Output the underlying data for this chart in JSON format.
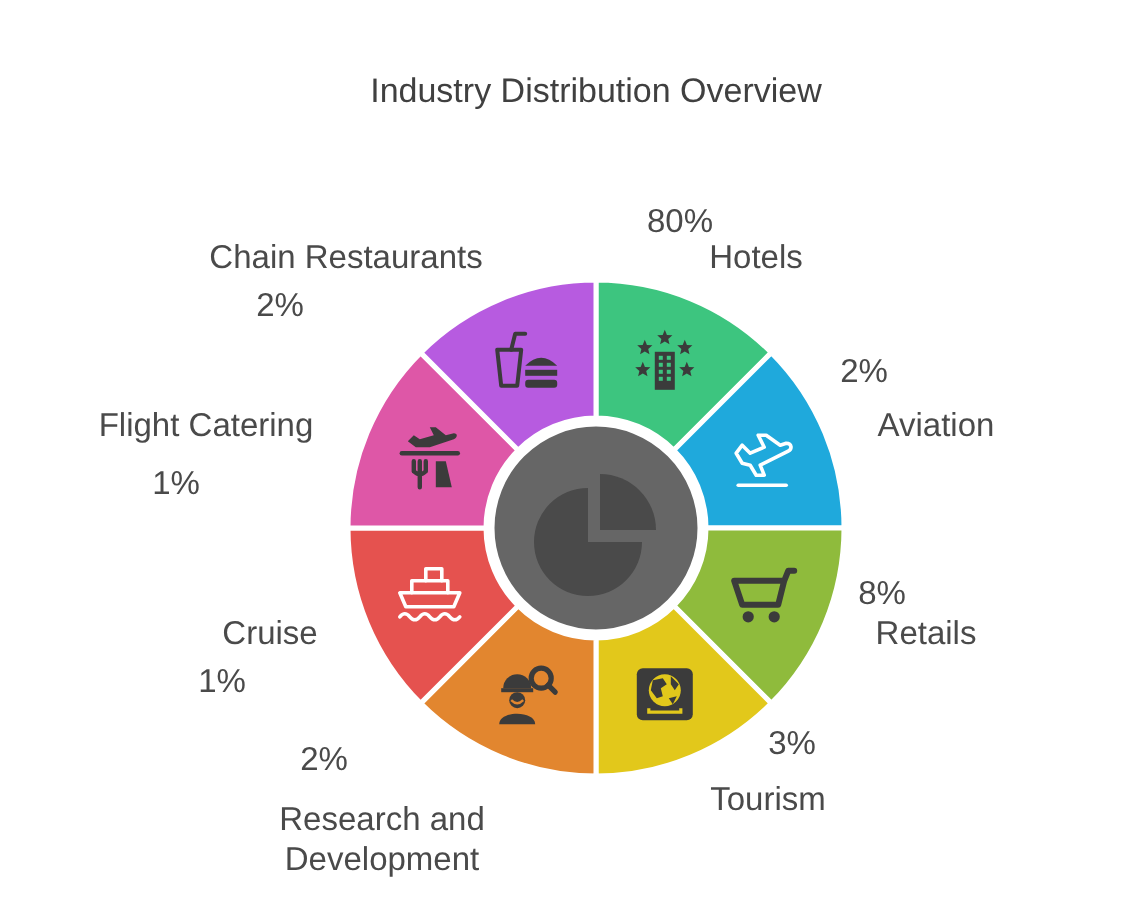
{
  "chart_data": {
    "type": "other",
    "title": "Industry Distribution Overview",
    "categories": [
      "Hotels",
      "Aviation",
      "Retails",
      "Tourism",
      "Research and Development",
      "Cruise",
      "Flight Catering",
      "Chain Restaurants"
    ],
    "values": [
      80,
      2,
      8,
      3,
      2,
      1,
      1,
      2
    ],
    "value_labels": [
      "80%",
      "2%",
      "8%",
      "3%",
      "2%",
      "1%",
      "1%",
      "2%"
    ],
    "colors": [
      "#3dc57f",
      "#1fa9dc",
      "#8fbb3c",
      "#e2c81b",
      "#e2862f",
      "#e5524f",
      "#de57a7",
      "#b75be0"
    ]
  }
}
